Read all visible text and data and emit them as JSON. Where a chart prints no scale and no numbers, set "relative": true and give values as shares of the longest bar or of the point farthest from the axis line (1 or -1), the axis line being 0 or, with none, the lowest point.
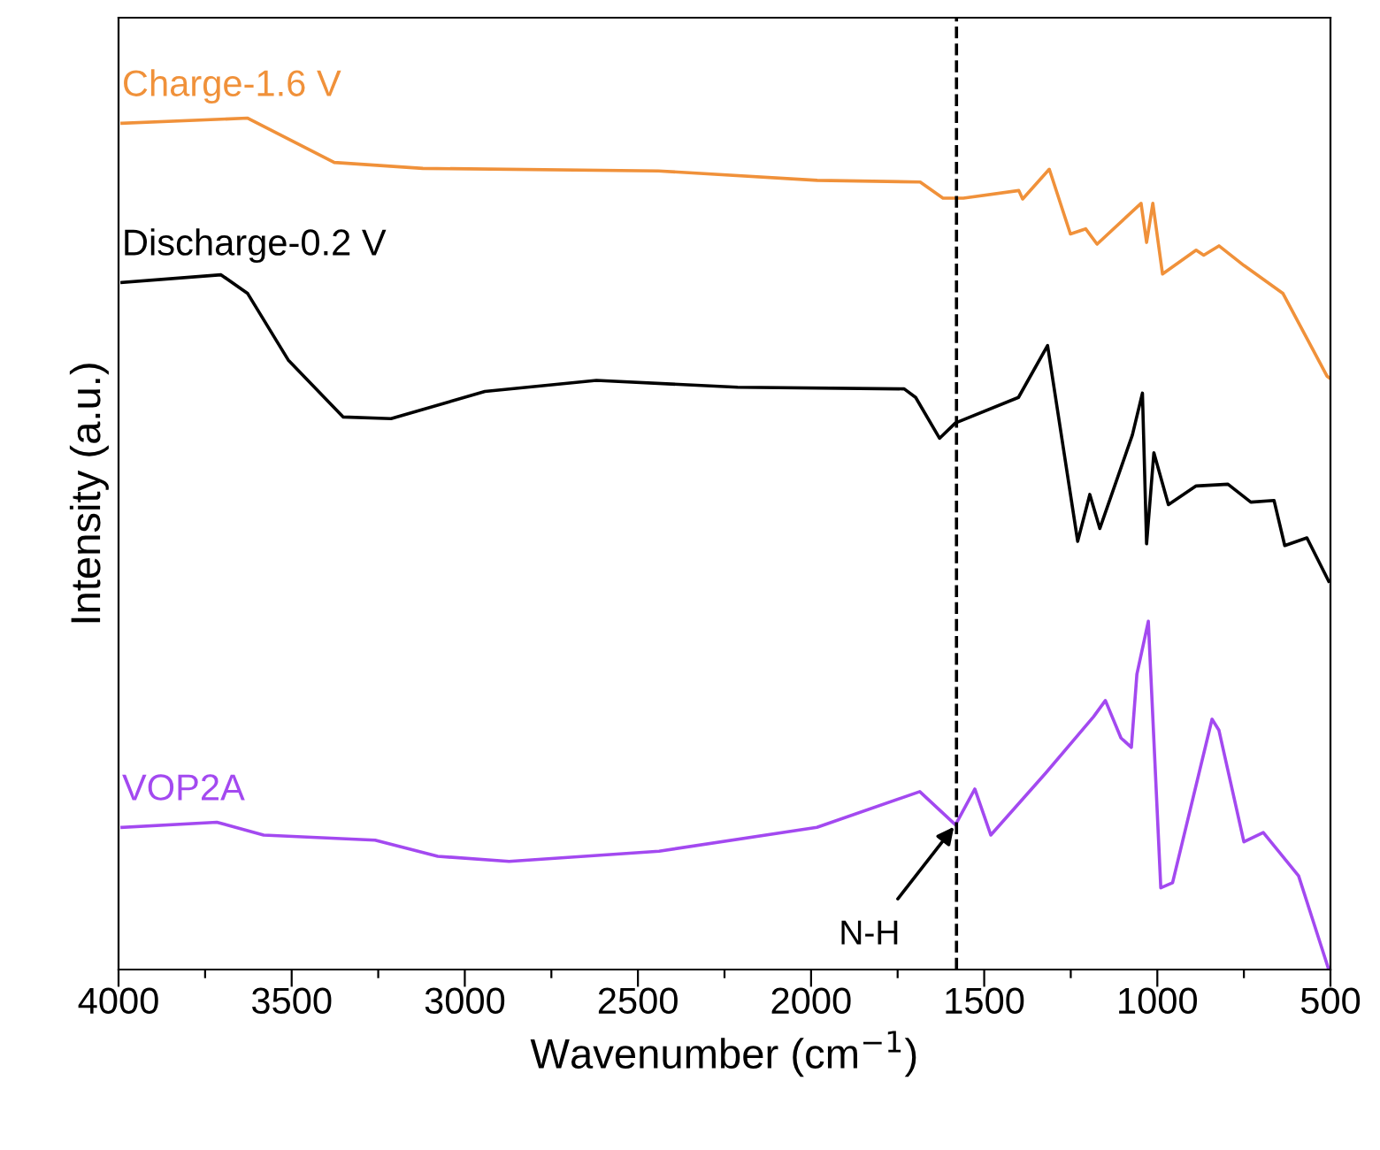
{
  "chart_data": {
    "type": "line",
    "relative": true,
    "xlabel": "Wavenumber (cm$^{−1}$)",
    "ylabel": "Intensity (a.u.)",
    "xlim": [
      4000,
      500
    ],
    "xticks": [
      4000,
      {
        "value": 3750,
        "label": null
      },
      3500,
      {
        "value": 3250,
        "label": null
      },
      3000,
      {
        "value": 2750,
        "label": null
      },
      2500,
      {
        "value": 2250,
        "label": null
      },
      2000,
      {
        "value": 1750,
        "label": null
      },
      1500,
      {
        "value": 1250,
        "label": null
      },
      1000,
      {
        "value": 750,
        "label": null
      },
      500
    ],
    "tick_labels": "x",
    "grid": false,
    "legend": false,
    "line_style": "solid",
    "marker": "none",
    "series": [
      {
        "name": "Charge-1.6 V",
        "color": "#f0913a",
        "x": [
          3990,
          3627,
          3377,
          3121,
          2441,
          1982,
          1685,
          1619,
          1560,
          1400,
          1389,
          1312,
          1251,
          1207,
          1174,
          1047,
          1031,
          1013,
          985,
          888,
          866,
          822,
          750,
          637,
          510,
          500
        ],
        "values": [
          0.994,
          1.0,
          0.948,
          0.941,
          0.938,
          0.927,
          0.925,
          0.906,
          0.906,
          0.915,
          0.905,
          0.94,
          0.864,
          0.87,
          0.852,
          0.9,
          0.854,
          0.9,
          0.817,
          0.845,
          0.839,
          0.85,
          0.827,
          0.794,
          0.697,
          0.694
        ]
      },
      {
        "name": "Discharge-0.2 V",
        "color": "#000000",
        "x": [
          3990,
          3704,
          3627,
          3510,
          3351,
          3213,
          2942,
          2620,
          2212,
          1731,
          1698,
          1629,
          1583,
          1401,
          1317,
          1230,
          1195,
          1166,
          1072,
          1043,
          1031,
          1010,
          968,
          888,
          796,
          730,
          663,
          632,
          568,
          505
        ],
        "values": [
          0.807,
          0.816,
          0.794,
          0.716,
          0.649,
          0.647,
          0.679,
          0.692,
          0.684,
          0.682,
          0.672,
          0.624,
          0.642,
          0.672,
          0.733,
          0.503,
          0.558,
          0.518,
          0.628,
          0.677,
          0.5,
          0.607,
          0.546,
          0.568,
          0.57,
          0.549,
          0.551,
          0.498,
          0.507,
          0.456
        ]
      },
      {
        "name": "VOP2A",
        "color": "#a349f0",
        "x": [
          3990,
          3716,
          3581,
          3259,
          3078,
          2872,
          2439,
          1983,
          1686,
          1583,
          1527,
          1481,
          1322,
          1184,
          1150,
          1105,
          1075,
          1059,
          1026,
          990,
          956,
          842,
          822,
          750,
          694,
          592,
          505,
          500
        ],
        "values": [
          0.167,
          0.173,
          0.158,
          0.152,
          0.133,
          0.127,
          0.139,
          0.167,
          0.209,
          0.17,
          0.212,
          0.158,
          0.231,
          0.297,
          0.316,
          0.272,
          0.261,
          0.347,
          0.409,
          0.096,
          0.102,
          0.294,
          0.281,
          0.15,
          0.161,
          0.11,
          0.0,
          0.0
        ]
      }
    ],
    "ref_lines": [
      {
        "axis": "x",
        "value": 1580,
        "label": null,
        "color": "#000000",
        "line_style": "dashed"
      }
    ],
    "annotations": [
      {
        "text": "N-H",
        "x": 1583,
        "y": 0.17
      }
    ]
  }
}
